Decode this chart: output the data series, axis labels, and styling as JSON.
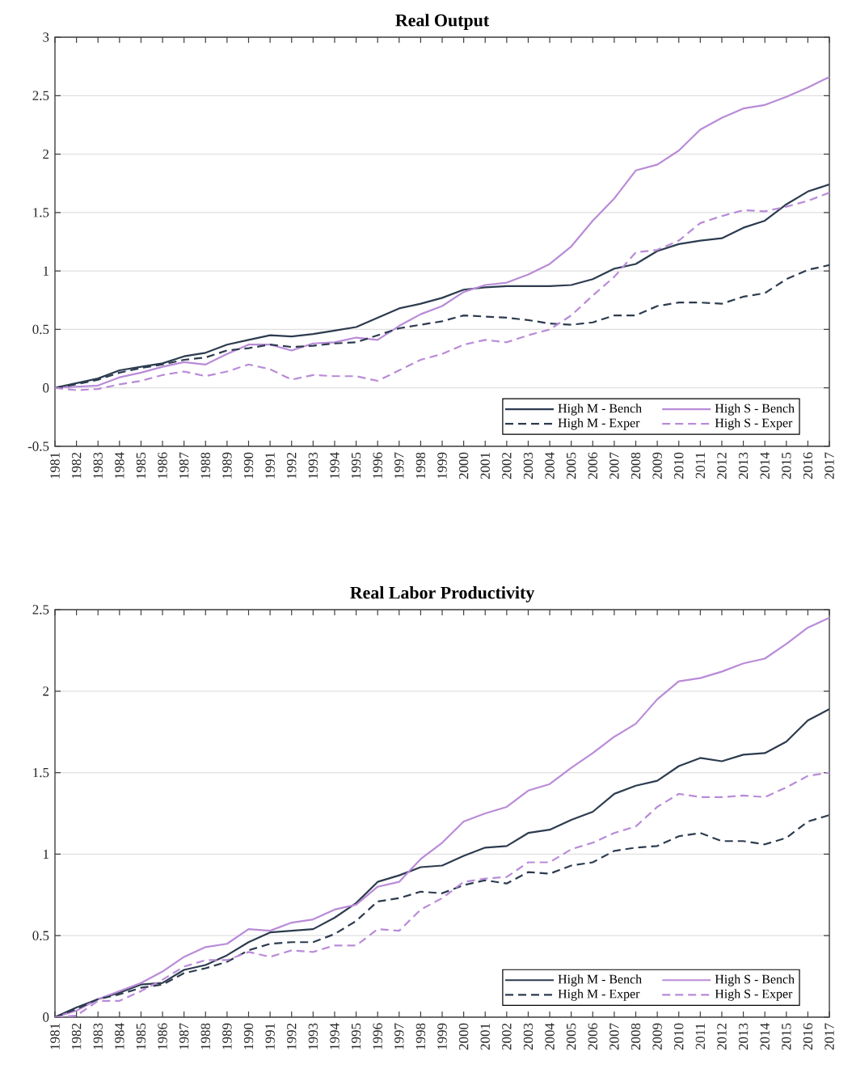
{
  "chart_data": [
    {
      "type": "line",
      "title": "Real Output",
      "categories": [
        "1981",
        "1982",
        "1983",
        "1984",
        "1985",
        "1986",
        "1987",
        "1988",
        "1989",
        "1990",
        "1991",
        "1992",
        "1993",
        "1994",
        "1995",
        "1996",
        "1997",
        "1998",
        "1999",
        "2000",
        "2001",
        "2002",
        "2003",
        "2004",
        "2005",
        "2006",
        "2007",
        "2008",
        "2009",
        "2010",
        "2011",
        "2012",
        "2013",
        "2014",
        "2015",
        "2016",
        "2017"
      ],
      "ylim": [
        -0.5,
        3
      ],
      "yticks": [
        -0.5,
        0,
        0.5,
        1,
        1.5,
        2,
        2.5,
        3
      ],
      "grid": "y",
      "legend": "bottom right",
      "series": [
        {
          "name": "High M - Bench",
          "color": "#2c3b4f",
          "line_style": "solid",
          "values": [
            0,
            0.04,
            0.08,
            0.15,
            0.18,
            0.21,
            0.27,
            0.3,
            0.37,
            0.41,
            0.45,
            0.44,
            0.46,
            0.49,
            0.52,
            0.6,
            0.68,
            0.72,
            0.77,
            0.84,
            0.86,
            0.87,
            0.87,
            0.87,
            0.88,
            0.93,
            1.02,
            1.06,
            1.17,
            1.23,
            1.26,
            1.28,
            1.37,
            1.43,
            1.57,
            1.68,
            1.74
          ]
        },
        {
          "name": "High S - Bench",
          "color": "#b98bd8",
          "line_style": "solid",
          "values": [
            0,
            0.01,
            0.02,
            0.09,
            0.13,
            0.18,
            0.22,
            0.2,
            0.29,
            0.37,
            0.37,
            0.32,
            0.38,
            0.39,
            0.43,
            0.41,
            0.53,
            0.63,
            0.7,
            0.82,
            0.88,
            0.9,
            0.97,
            1.06,
            1.21,
            1.43,
            1.62,
            1.86,
            1.91,
            2.03,
            2.21,
            2.31,
            2.39,
            2.42,
            2.49,
            2.57,
            2.66
          ]
        },
        {
          "name": "High M - Exper",
          "color": "#2c3b4f",
          "line_style": "dashed",
          "values": [
            0,
            0.03,
            0.07,
            0.13,
            0.17,
            0.2,
            0.24,
            0.26,
            0.32,
            0.34,
            0.37,
            0.35,
            0.36,
            0.38,
            0.39,
            0.45,
            0.51,
            0.54,
            0.57,
            0.62,
            0.61,
            0.6,
            0.58,
            0.55,
            0.54,
            0.56,
            0.62,
            0.62,
            0.7,
            0.73,
            0.73,
            0.72,
            0.78,
            0.81,
            0.93,
            1.01,
            1.05
          ]
        },
        {
          "name": "High S - Exper",
          "color": "#b98bd8",
          "line_style": "dashed",
          "values": [
            0,
            -0.02,
            -0.01,
            0.03,
            0.06,
            0.11,
            0.14,
            0.1,
            0.14,
            0.2,
            0.16,
            0.07,
            0.11,
            0.1,
            0.1,
            0.06,
            0.15,
            0.24,
            0.29,
            0.37,
            0.41,
            0.39,
            0.45,
            0.5,
            0.62,
            0.79,
            0.95,
            1.16,
            1.18,
            1.26,
            1.41,
            1.47,
            1.52,
            1.51,
            1.55,
            1.6,
            1.67
          ]
        }
      ]
    },
    {
      "type": "line",
      "title": "Real Labor Productivity",
      "categories": [
        "1981",
        "1982",
        "1983",
        "1984",
        "1985",
        "1986",
        "1987",
        "1988",
        "1989",
        "1990",
        "1991",
        "1992",
        "1993",
        "1994",
        "1995",
        "1996",
        "1997",
        "1998",
        "1999",
        "2000",
        "2001",
        "2002",
        "2003",
        "2004",
        "2005",
        "2006",
        "2007",
        "2008",
        "2009",
        "2010",
        "2011",
        "2012",
        "2013",
        "2014",
        "2015",
        "2016",
        "2017"
      ],
      "ylim": [
        0,
        2.5
      ],
      "yticks": [
        0,
        0.5,
        1,
        1.5,
        2,
        2.5
      ],
      "grid": "y",
      "legend": "bottom right",
      "series": [
        {
          "name": "High M - Bench",
          "color": "#2c3b4f",
          "line_style": "solid",
          "values": [
            0,
            0.06,
            0.11,
            0.15,
            0.2,
            0.21,
            0.29,
            0.32,
            0.38,
            0.46,
            0.52,
            0.53,
            0.54,
            0.61,
            0.7,
            0.83,
            0.87,
            0.92,
            0.93,
            0.99,
            1.04,
            1.05,
            1.13,
            1.15,
            1.21,
            1.26,
            1.37,
            1.42,
            1.45,
            1.54,
            1.59,
            1.57,
            1.61,
            1.62,
            1.69,
            1.82,
            1.89
          ]
        },
        {
          "name": "High S - Bench",
          "color": "#b98bd8",
          "line_style": "solid",
          "values": [
            0,
            0.04,
            0.11,
            0.16,
            0.21,
            0.28,
            0.37,
            0.43,
            0.45,
            0.54,
            0.53,
            0.58,
            0.6,
            0.66,
            0.69,
            0.8,
            0.83,
            0.97,
            1.07,
            1.2,
            1.25,
            1.29,
            1.39,
            1.43,
            1.53,
            1.62,
            1.72,
            1.8,
            1.95,
            2.06,
            2.08,
            2.12,
            2.17,
            2.2,
            2.29,
            2.39,
            2.45
          ]
        },
        {
          "name": "High M - Exper",
          "color": "#2c3b4f",
          "line_style": "dashed",
          "values": [
            0,
            0.05,
            0.11,
            0.14,
            0.18,
            0.2,
            0.27,
            0.3,
            0.34,
            0.41,
            0.45,
            0.46,
            0.46,
            0.51,
            0.59,
            0.71,
            0.73,
            0.77,
            0.76,
            0.81,
            0.84,
            0.82,
            0.89,
            0.88,
            0.93,
            0.95,
            1.02,
            1.04,
            1.05,
            1.11,
            1.13,
            1.08,
            1.08,
            1.06,
            1.1,
            1.2,
            1.24
          ]
        },
        {
          "name": "High S - Exper",
          "color": "#b98bd8",
          "line_style": "dashed",
          "values": [
            0,
            0.01,
            0.1,
            0.1,
            0.16,
            0.23,
            0.31,
            0.35,
            0.35,
            0.4,
            0.37,
            0.41,
            0.4,
            0.44,
            0.44,
            0.54,
            0.53,
            0.66,
            0.73,
            0.83,
            0.85,
            0.86,
            0.95,
            0.95,
            1.03,
            1.07,
            1.13,
            1.17,
            1.29,
            1.37,
            1.35,
            1.35,
            1.36,
            1.35,
            1.41,
            1.48,
            1.5
          ]
        }
      ]
    }
  ]
}
